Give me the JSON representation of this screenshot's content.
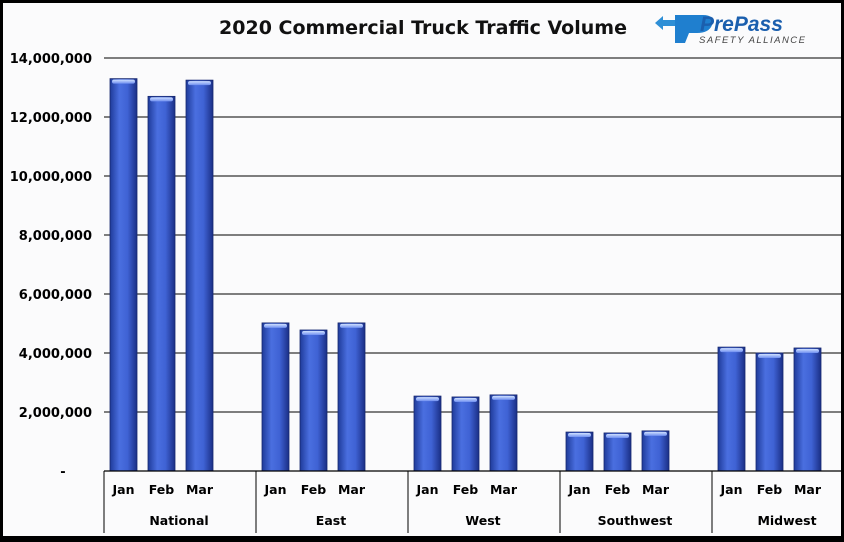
{
  "chart_data": {
    "type": "bar",
    "title": "2020 Commercial Truck Traffic Volume",
    "logo": {
      "name": "PrePass",
      "tagline": "SAFETY ALLIANCE"
    },
    "groups": [
      "National",
      "East",
      "West",
      "Southwest",
      "Midwest"
    ],
    "months": [
      "Jan",
      "Feb",
      "Mar"
    ],
    "values": [
      [
        13300000,
        12700000,
        13250000
      ],
      [
        5020000,
        4780000,
        5020000
      ],
      [
        2540000,
        2510000,
        2580000
      ],
      [
        1320000,
        1290000,
        1360000
      ],
      [
        4200000,
        4000000,
        4170000
      ]
    ],
    "ylim": [
      0,
      14000000
    ],
    "yticks": [
      "-",
      "2,000,000",
      "4,000,000",
      "6,000,000",
      "8,000,000",
      "10,000,000",
      "12,000,000",
      "14,000,000"
    ],
    "grid": true,
    "bar_color": "#3a5fcd"
  }
}
